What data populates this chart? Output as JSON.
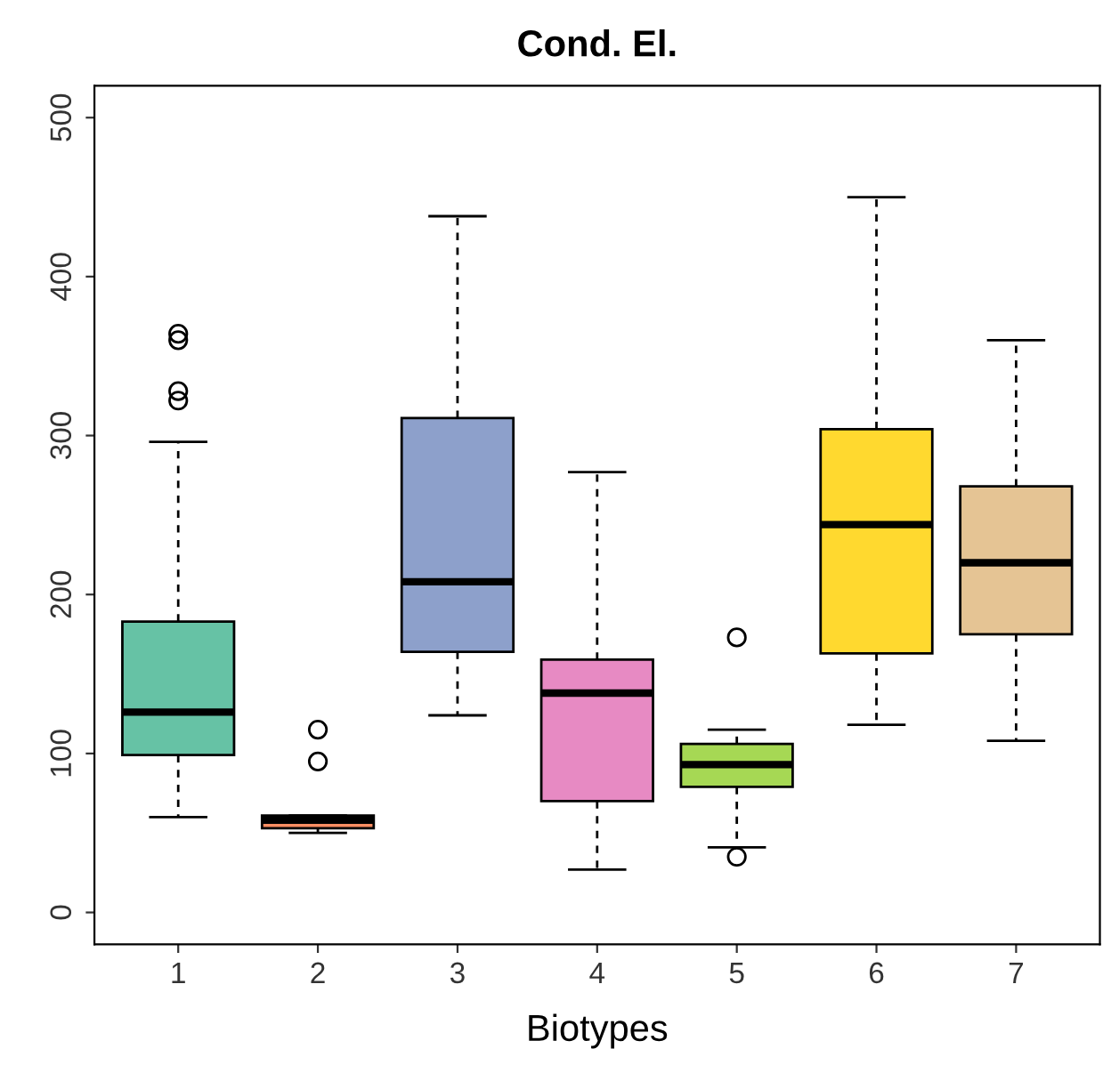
{
  "chart_data": {
    "type": "box",
    "title": "Cond. El.",
    "xlabel": "Biotypes",
    "categories": [
      "1",
      "2",
      "3",
      "4",
      "5",
      "6",
      "7"
    ],
    "colors": [
      "#66c2a5",
      "#fc8d62",
      "#8da0cb",
      "#e78ac3",
      "#a6d854",
      "#ffd92f",
      "#e5c494"
    ],
    "boxes": [
      {
        "low": 60,
        "q1": 99,
        "median": 126,
        "q3": 183,
        "high": 296,
        "outliers": [
          364,
          360,
          328,
          322
        ]
      },
      {
        "low": 50,
        "q1": 53,
        "median": 58,
        "q3": 61,
        "high": 61,
        "outliers": [
          115,
          95
        ]
      },
      {
        "low": 124,
        "q1": 164,
        "median": 208,
        "q3": 311,
        "high": 438
      },
      {
        "low": 27,
        "q1": 70,
        "median": 138,
        "q3": 159,
        "high": 277
      },
      {
        "low": 41,
        "q1": 79,
        "median": 93,
        "q3": 106,
        "high": 115,
        "outliers": [
          173,
          35
        ]
      },
      {
        "low": 118,
        "q1": 163,
        "median": 244,
        "q3": 304,
        "high": 450
      },
      {
        "low": 108,
        "q1": 175,
        "median": 220,
        "q3": 268,
        "high": 360
      }
    ],
    "ylim": [
      -20,
      520
    ],
    "yticks": [
      0,
      100,
      200,
      300,
      400,
      500
    ],
    "grid": false
  }
}
